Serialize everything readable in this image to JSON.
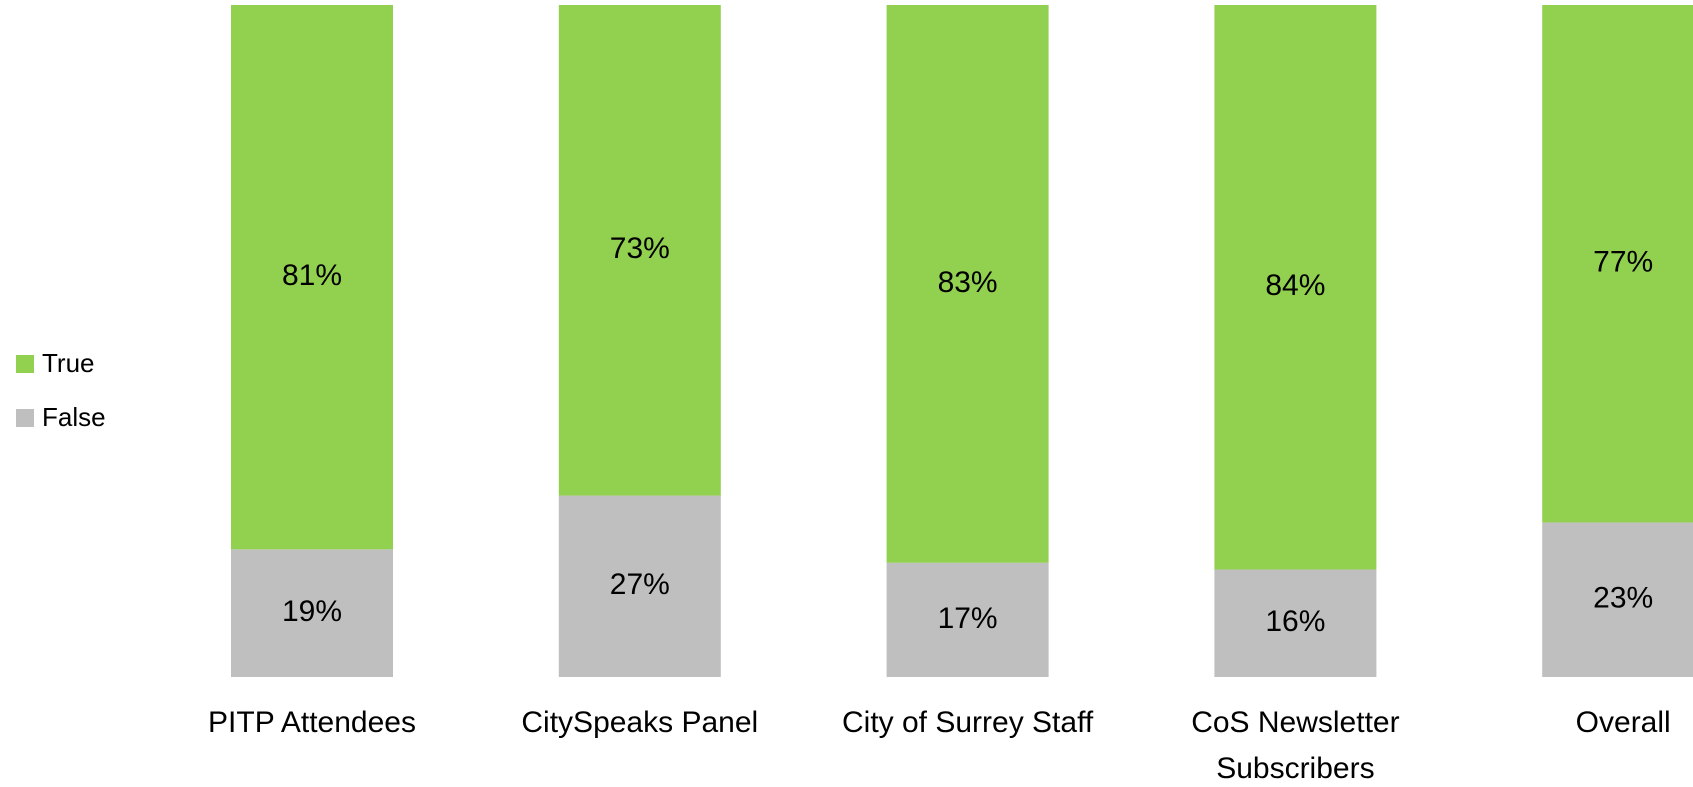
{
  "chart_data": {
    "type": "stacked_bar",
    "categories": [
      "PITP Attendees",
      "CitySpeaks Panel",
      "City of Surrey Staff",
      "CoS Newsletter Subscribers",
      "Overall"
    ],
    "series": [
      {
        "name": "False",
        "color": "#bfbfbf",
        "values": [
          19,
          27,
          17,
          16,
          23
        ],
        "value_labels": [
          "19%",
          "27%",
          "17%",
          "16%",
          "23%"
        ]
      },
      {
        "name": "True",
        "color": "#92d050",
        "values": [
          81,
          73,
          83,
          84,
          77
        ],
        "value_labels": [
          "81%",
          "73%",
          "83%",
          "84%",
          "77%"
        ]
      }
    ],
    "ylim": [
      0,
      100
    ],
    "legend": "left"
  }
}
